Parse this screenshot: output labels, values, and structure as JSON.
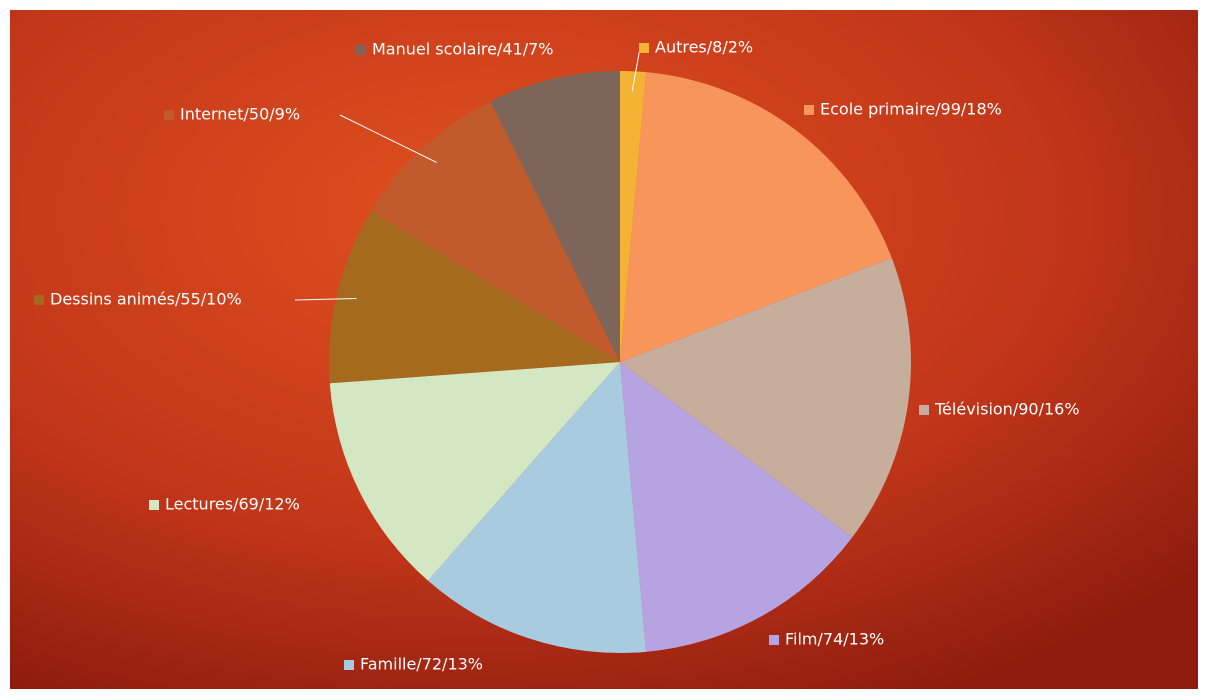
{
  "chart_data": {
    "type": "pie",
    "value_labels": [
      "Autres/8/2%",
      "Ecole primaire/99/18%",
      "Télévision/90/16%",
      "Film/74/13%",
      "Famille/72/13%",
      "Lectures/69/12%",
      "Dessins animés/55/10%",
      "Internet/50/9%",
      "Manuel scolaire/41/7%"
    ],
    "values": [
      8,
      99,
      90,
      74,
      72,
      69,
      55,
      50,
      41
    ],
    "colors": [
      "#f5b335",
      "#f7955a",
      "#c7ad9b",
      "#b7a3e2",
      "#a8cbe0",
      "#d4e7c3",
      "#a66a1e",
      "#c15a2d",
      "#7e6559"
    ]
  }
}
